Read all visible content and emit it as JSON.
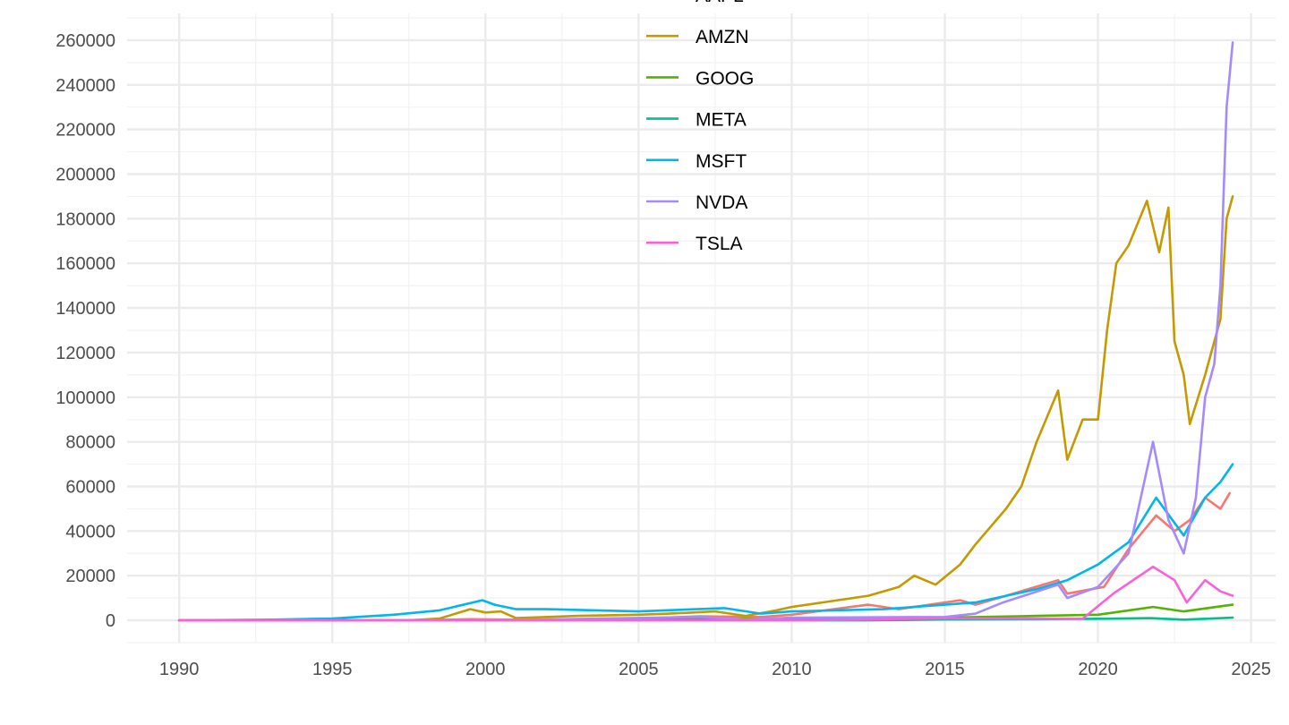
{
  "chart_data": {
    "type": "line",
    "title": "",
    "xlabel": "",
    "ylabel": "",
    "xlim": [
      1988.3,
      2025.8
    ],
    "ylim": [
      -10000,
      272000
    ],
    "grid": true,
    "x_ticks": [
      1990,
      1995,
      2000,
      2005,
      2010,
      2015,
      2020,
      2025
    ],
    "y_ticks": [
      0,
      20000,
      40000,
      60000,
      80000,
      100000,
      120000,
      140000,
      160000,
      180000,
      200000,
      220000,
      240000,
      260000
    ],
    "x_tick_labels": [
      "1990",
      "1995",
      "2000",
      "2005",
      "2010",
      "2015",
      "2020",
      "2025"
    ],
    "y_tick_labels": [
      "0",
      "20000",
      "40000",
      "60000",
      "80000",
      "100000",
      "120000",
      "140000",
      "160000",
      "180000",
      "200000",
      "220000",
      "240000",
      "260000"
    ],
    "legend_position": "top-center",
    "series": [
      {
        "name": "AAPL",
        "color": "#F8766D",
        "x": [
          1990,
          1995,
          1998,
          1999.5,
          2001,
          2003,
          2005,
          2007,
          2009,
          2010,
          2012.5,
          2013.5,
          2015.5,
          2016,
          2017,
          2018.7,
          2019,
          2020.2,
          2021,
          2021.9,
          2022.5,
          2023,
          2023.5,
          2024,
          2024.3
        ],
        "y": [
          0,
          100,
          120,
          500,
          300,
          400,
          800,
          1800,
          1500,
          2500,
          7000,
          5000,
          9000,
          7000,
          11000,
          18000,
          12000,
          15000,
          32000,
          47000,
          40000,
          45000,
          55000,
          50000,
          57000
        ]
      },
      {
        "name": "AMZN",
        "color": "#C49A00",
        "x": [
          1990,
          1997.5,
          1998.5,
          1999.5,
          2000,
          2000.5,
          2001,
          2003,
          2005,
          2006,
          2007.5,
          2008.5,
          2009.5,
          2010,
          2011,
          2012.5,
          2013.5,
          2014,
          2014.7,
          2015.5,
          2016,
          2017,
          2017.5,
          2018,
          2018.7,
          2019,
          2019.5,
          2020,
          2020.3,
          2020.6,
          2021,
          2021.6,
          2022,
          2022.3,
          2022.5,
          2022.8,
          2023,
          2023.5,
          2024,
          2024.2,
          2024.4
        ],
        "y": [
          0,
          0,
          800,
          5000,
          3500,
          4000,
          1000,
          2000,
          2500,
          3000,
          4000,
          2000,
          4500,
          6000,
          8000,
          11000,
          15000,
          20000,
          16000,
          25000,
          34000,
          50000,
          60000,
          80000,
          103000,
          72000,
          90000,
          90000,
          130000,
          160000,
          168000,
          188000,
          165000,
          185000,
          125000,
          110000,
          88000,
          110000,
          135000,
          180000,
          190000
        ]
      },
      {
        "name": "GOOG",
        "color": "#53B400",
        "x": [
          1990,
          2004.7,
          2007,
          2009,
          2012,
          2015,
          2018,
          2020,
          2021.8,
          2022.8,
          2024.4
        ],
        "y": [
          0,
          150,
          800,
          500,
          900,
          1200,
          2000,
          2500,
          6000,
          4000,
          7000
        ]
      },
      {
        "name": "META",
        "color": "#00C094",
        "x": [
          1990,
          2012.4,
          2015,
          2018,
          2020,
          2021.7,
          2022.8,
          2024.4
        ],
        "y": [
          0,
          0,
          400,
          500,
          700,
          1000,
          300,
          1200
        ]
      },
      {
        "name": "MSFT",
        "color": "#00B6EB",
        "x": [
          1990,
          1993,
          1995,
          1997,
          1998.5,
          1999.9,
          2000.3,
          2001,
          2002,
          2005,
          2007.8,
          2009,
          2010,
          2013,
          2015,
          2016,
          2018,
          2019,
          2020,
          2021,
          2021.9,
          2022.8,
          2023.5,
          2024,
          2024.4
        ],
        "y": [
          0,
          300,
          800,
          2500,
          4500,
          9000,
          7000,
          5000,
          5000,
          4000,
          5500,
          3000,
          4000,
          5000,
          7000,
          8000,
          14000,
          18000,
          25000,
          35000,
          55000,
          38000,
          55000,
          62000,
          70000
        ]
      },
      {
        "name": "NVDA",
        "color": "#A58AFF",
        "x": [
          1990,
          1999.5,
          2002,
          2007,
          2008.5,
          2010,
          2015,
          2016,
          2016.9,
          2018.7,
          2019,
          2020,
          2021,
          2021.8,
          2022.3,
          2022.8,
          2023.2,
          2023.5,
          2023.8,
          2024,
          2024.2,
          2024.4
        ],
        "y": [
          0,
          0,
          400,
          1500,
          300,
          1200,
          1500,
          3000,
          8000,
          16000,
          10000,
          15000,
          30000,
          80000,
          45000,
          30000,
          55000,
          100000,
          115000,
          150000,
          230000,
          259000
        ]
      },
      {
        "name": "TSLA",
        "color": "#FB61D7",
        "x": [
          1990,
          2010.5,
          2013,
          2015,
          2019.5,
          2020.5,
          2021.8,
          2022.5,
          2022.9,
          2023.5,
          2024,
          2024.4
        ],
        "y": [
          0,
          0,
          500,
          900,
          700,
          12000,
          24000,
          18000,
          8000,
          18000,
          13000,
          11000
        ]
      }
    ]
  }
}
